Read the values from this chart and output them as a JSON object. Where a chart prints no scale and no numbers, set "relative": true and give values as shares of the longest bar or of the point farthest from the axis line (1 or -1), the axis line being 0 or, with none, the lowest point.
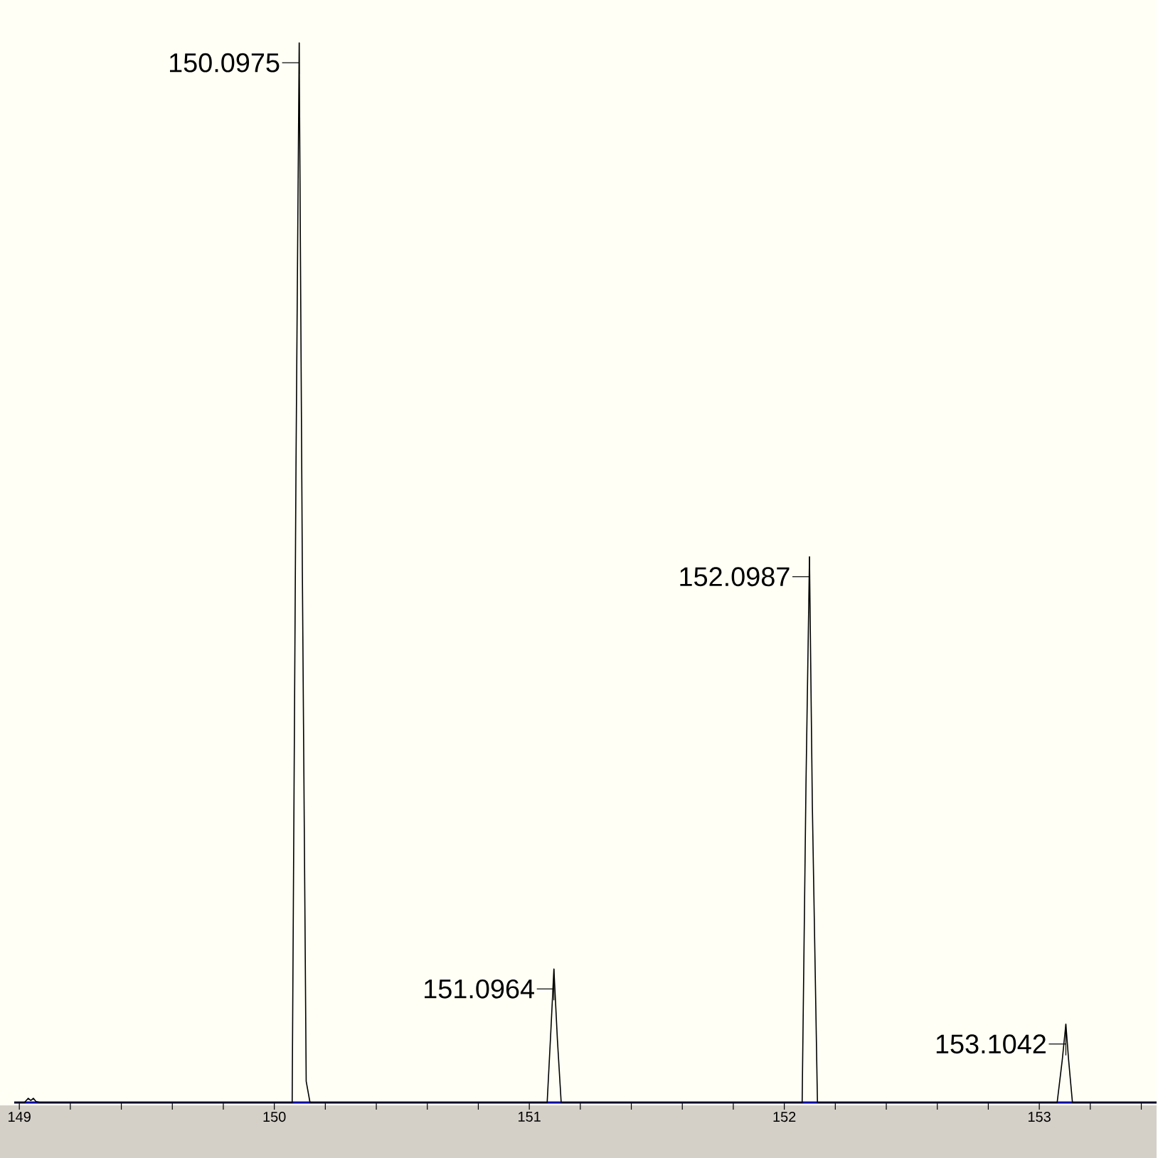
{
  "chart_data": {
    "type": "line",
    "relative": true,
    "x": [
      148.98,
      149.02,
      149.035,
      149.045,
      149.055,
      149.065,
      149.08,
      150.07,
      150.085,
      150.0975,
      150.11,
      150.125,
      150.14,
      151.07,
      151.085,
      151.0964,
      151.11,
      151.125,
      152.07,
      152.085,
      152.0987,
      152.11,
      152.13,
      153.07,
      153.09,
      153.1042,
      153.115,
      153.13,
      153.46
    ],
    "series": [
      {
        "color": "#000000",
        "values": [
          0,
          0,
          0.004,
          0.002,
          0.004,
          0.001,
          0,
          0,
          0.6,
          1.0,
          0.5,
          0.02,
          0,
          0,
          0.07,
          0.126,
          0.06,
          0,
          0,
          0.3,
          0.515,
          0.28,
          0,
          0,
          0.04,
          0.074,
          0.04,
          0,
          0
        ]
      }
    ],
    "xlim": [
      148.98,
      153.46
    ],
    "xticks": [
      149,
      {
        "value": 149.2,
        "label": null
      },
      {
        "value": 149.4,
        "label": null
      },
      {
        "value": 149.6,
        "label": null
      },
      {
        "value": 149.8,
        "label": null
      },
      150,
      {
        "value": 150.2,
        "label": null
      },
      {
        "value": 150.4,
        "label": null
      },
      {
        "value": 150.6,
        "label": null
      },
      {
        "value": 150.8,
        "label": null
      },
      151,
      {
        "value": 151.2,
        "label": null
      },
      {
        "value": 151.4,
        "label": null
      },
      {
        "value": 151.6,
        "label": null
      },
      {
        "value": 151.8,
        "label": null
      },
      152,
      {
        "value": 152.2,
        "label": null
      },
      {
        "value": 152.4,
        "label": null
      },
      {
        "value": 152.6,
        "label": null
      },
      {
        "value": 152.8,
        "label": null
      },
      153,
      {
        "value": 153.2,
        "label": null
      },
      {
        "value": 153.4,
        "label": null
      }
    ],
    "annotations": [
      {
        "text": "150.0975",
        "x": 150.0975,
        "y": 1.0
      },
      {
        "text": "151.0964",
        "x": 151.0964,
        "y": 0.126
      },
      {
        "text": "152.0987",
        "x": 152.0987,
        "y": 0.515
      },
      {
        "text": "153.1042",
        "x": 153.1042,
        "y": 0.074
      }
    ]
  }
}
